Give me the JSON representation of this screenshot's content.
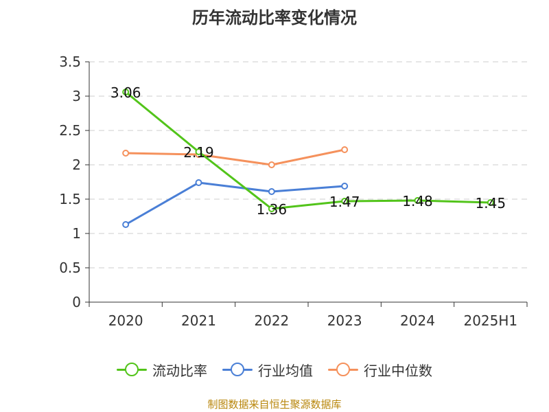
{
  "chart_data": {
    "type": "line",
    "title": "历年流动比率变化情况",
    "categories": [
      "2020",
      "2021",
      "2022",
      "2023",
      "2024",
      "2025H1"
    ],
    "yticks": [
      "0",
      "0.5",
      "1",
      "1.5",
      "2",
      "2.5",
      "3",
      "3.5"
    ],
    "ylim": [
      0,
      3.5
    ],
    "grid": true,
    "legend_position": "bottom",
    "series": [
      {
        "name": "流动比率",
        "color": "#52c41a",
        "values": [
          3.06,
          2.19,
          1.36,
          1.47,
          1.48,
          1.45
        ],
        "labels": [
          "3.06",
          "2.19",
          "1.36",
          "1.47",
          "1.48",
          "1.45"
        ],
        "show_labels": true
      },
      {
        "name": "行业均值",
        "color": "#4a7fd6",
        "values": [
          1.13,
          1.74,
          1.61,
          1.69,
          null,
          null
        ],
        "show_labels": false
      },
      {
        "name": "行业中位数",
        "color": "#f5915c",
        "values": [
          2.17,
          2.15,
          2.0,
          2.22,
          null,
          null
        ],
        "show_labels": false
      }
    ]
  },
  "source_note": "制图数据来自恒生聚源数据库"
}
